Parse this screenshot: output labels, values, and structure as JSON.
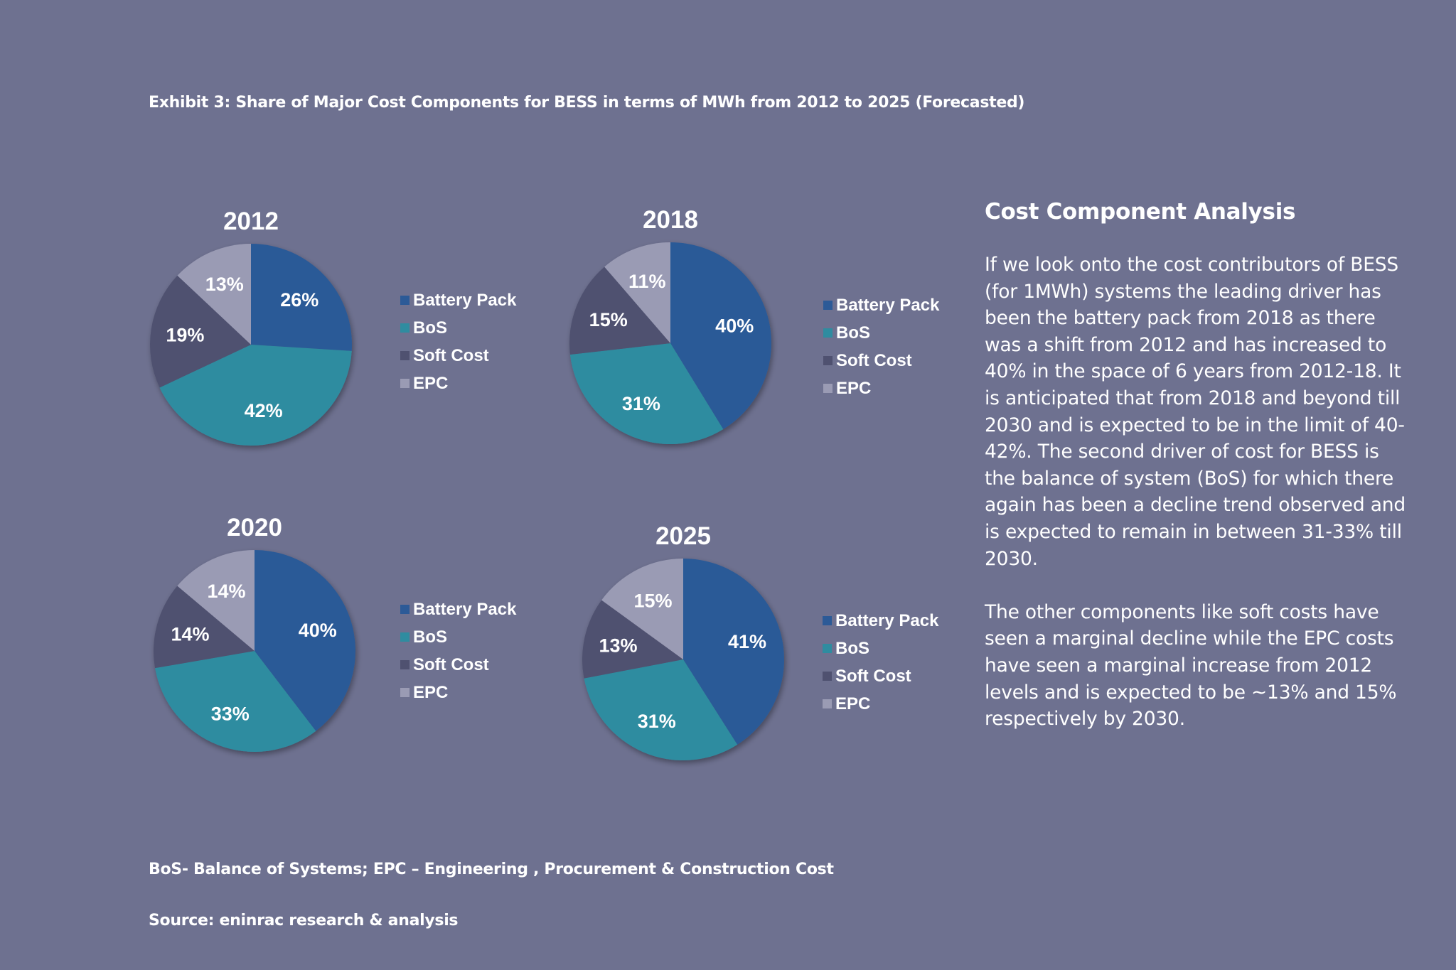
{
  "title": "Exhibit 3: Share of Major Cost Components for BESS in terms of MWh from 2012 to 2025 (Forecasted)",
  "colors": {
    "Battery Pack": "#2c5a97",
    "BoS": "#2f8ca0",
    "Soft Cost": "#4f5170",
    "EPC": "#9a9bb4"
  },
  "legend_labels": [
    "Battery Pack",
    "BoS",
    "Soft Cost",
    "EPC"
  ],
  "chart_data": [
    {
      "type": "pie",
      "title": "2012",
      "categories": [
        "Battery Pack",
        "BoS",
        "Soft Cost",
        "EPC"
      ],
      "values": [
        26,
        42,
        19,
        13
      ],
      "labels": [
        "26%",
        "42%",
        "19%",
        "13%"
      ]
    },
    {
      "type": "pie",
      "title": "2018",
      "categories": [
        "Battery Pack",
        "BoS",
        "Soft Cost",
        "EPC"
      ],
      "values": [
        40,
        31,
        15,
        11
      ],
      "labels": [
        "40%",
        "31%",
        "15%",
        "11%"
      ]
    },
    {
      "type": "pie",
      "title": "2020",
      "categories": [
        "Battery Pack",
        "BoS",
        "Soft Cost",
        "EPC"
      ],
      "values": [
        40,
        33,
        14,
        14
      ],
      "labels": [
        "40%",
        "33%",
        "14%",
        "14%"
      ]
    },
    {
      "type": "pie",
      "title": "2025",
      "categories": [
        "Battery Pack",
        "BoS",
        "Soft Cost",
        "EPC"
      ],
      "values": [
        41,
        31,
        13,
        15
      ],
      "labels": [
        "41%",
        "31%",
        "13%",
        "15%"
      ]
    }
  ],
  "analysis": {
    "heading": "Cost Component Analysis",
    "paragraph1": "If we look onto the cost contributors of BESS (for 1MWh) systems the leading driver has been the battery pack from 2018 as there was a shift from 2012 and has increased to 40% in the space of 6 years from 2012-18. It is anticipated that from 2018 and beyond till 2030 and is expected to be in the limit of 40-42%. The second driver of cost for BESS is the balance of system (BoS) for which there again has been a decline trend observed and is expected to remain in between 31-33% till 2030.",
    "paragraph2": "The other components like soft costs have seen a marginal decline while the EPC costs have seen a marginal increase from 2012 levels and is expected to be ~13% and 15% respectively by 2030."
  },
  "footnotes": {
    "abbreviations": "BoS- Balance of Systems; EPC – Engineering , Procurement & Construction Cost",
    "source": "Source: eninrac research & analysis"
  }
}
